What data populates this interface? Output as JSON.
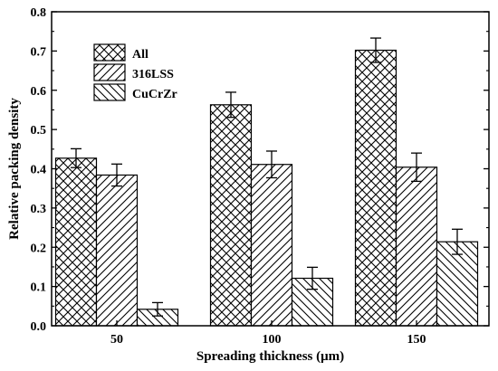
{
  "chart_data": {
    "type": "bar",
    "xlabel": "Spreading thickness (μm)",
    "ylabel": "Relative packing density",
    "categories": [
      "50",
      "100",
      "150"
    ],
    "ylim": [
      0.0,
      0.8
    ],
    "yticks": [
      "0.0",
      "0.1",
      "0.2",
      "0.3",
      "0.4",
      "0.5",
      "0.6",
      "0.7",
      "0.8"
    ],
    "grid": false,
    "legend_position": "top-left",
    "series": [
      {
        "name": "All",
        "pattern": "crosshatch",
        "values": [
          0.427,
          0.563,
          0.702
        ],
        "errors": [
          0.024,
          0.032,
          0.031
        ]
      },
      {
        "name": "316LSS",
        "pattern": "forward-diagonal",
        "values": [
          0.384,
          0.411,
          0.404
        ],
        "errors": [
          0.028,
          0.034,
          0.036
        ]
      },
      {
        "name": "CuCrZr",
        "pattern": "back-diagonal",
        "values": [
          0.042,
          0.121,
          0.214
        ],
        "errors": [
          0.017,
          0.028,
          0.032
        ]
      }
    ],
    "colors": {
      "bar_fill": "#ffffff",
      "stroke": "#000000"
    }
  }
}
